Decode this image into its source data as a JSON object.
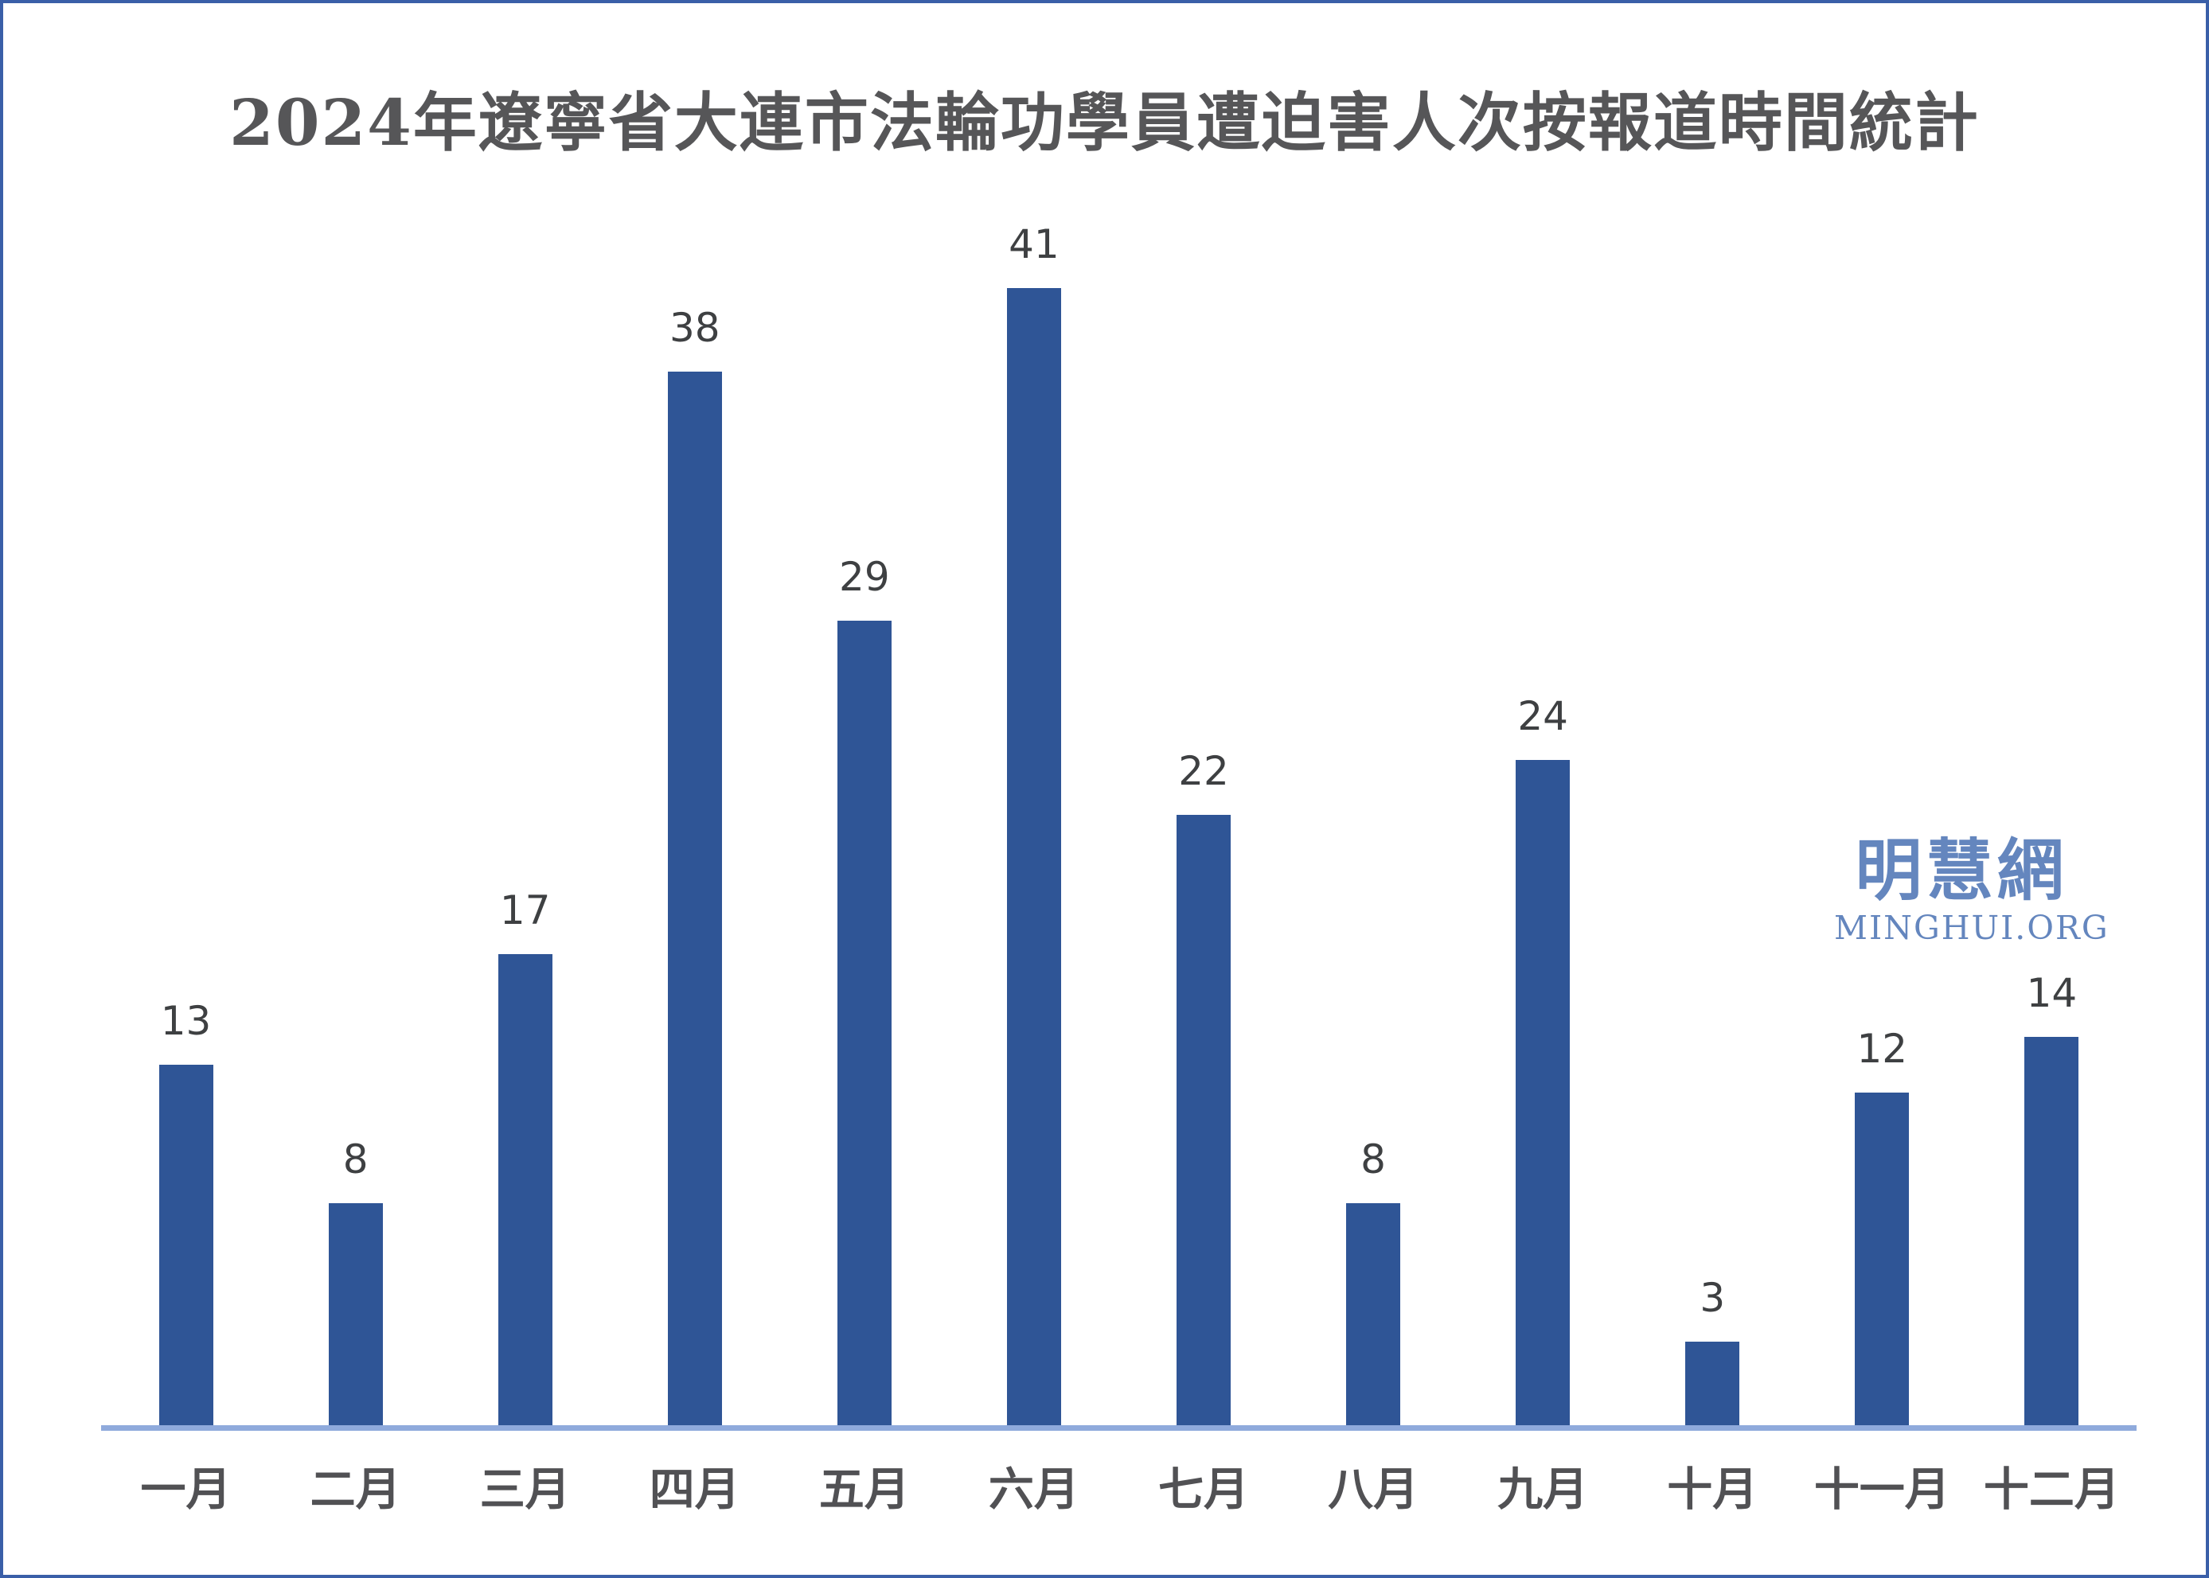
{
  "title": "2024年遼寧省大連市法輪功學員遭迫害人次按報道時間統計",
  "watermark": {
    "cn": "明慧網",
    "en": "MINGHUI.ORG",
    "color": "#6486be"
  },
  "colors": {
    "bar": "#2f5596",
    "axis_line": "#8faadc",
    "title_text": "#565658",
    "value_label_text": "#3e4042",
    "month_label_text": "#515154",
    "page_border": "#3a5fa8"
  },
  "chart_data": {
    "type": "bar",
    "title": "2024年遼寧省大連市法輪功學員遭迫害人次按報道時間統計",
    "categories": [
      "一月",
      "二月",
      "三月",
      "四月",
      "五月",
      "六月",
      "七月",
      "八月",
      "九月",
      "十月",
      "十一月",
      "十二月"
    ],
    "values": [
      13,
      8,
      17,
      38,
      29,
      41,
      22,
      8,
      24,
      3,
      12,
      14
    ],
    "xlabel": "",
    "ylabel": "",
    "ylim": [
      0,
      41
    ],
    "grid": false,
    "legend": "none",
    "y_axis_visible": false,
    "data_labels_visible": true,
    "bar_color": "#2f5596"
  }
}
